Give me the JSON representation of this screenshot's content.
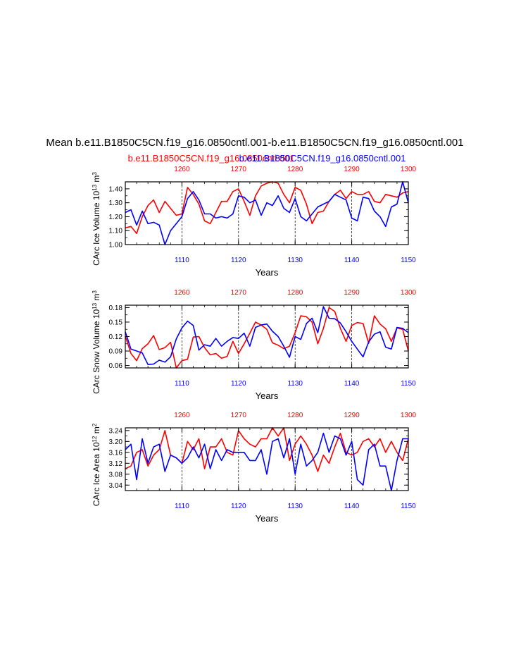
{
  "page": {
    "title": "Mean b.e11.B1850C5CN.f19_g16.0850cntl.001-b.e11.B1850C5CN.f19_g16.0850cntl.001",
    "legend_red": "b.e11.B1850C5CN.f19_g16.0850cntl.001",
    "legend_blue": "b.e11.B1850C5CN.f19_g16.0850cntl.001",
    "colors": {
      "red": "#ff0000",
      "blue": "#0000ff",
      "axis": "#000000",
      "grid": "#000000"
    }
  },
  "chart_data": [
    {
      "type": "line",
      "ylabel": "CArc Ice Volume 10^13 m^3",
      "ylabel_main": "CArc Ice Volume 10",
      "ylabel_exp1": "13",
      "ylabel_mid": " m",
      "ylabel_exp2": "3",
      "xlabel": "Years",
      "xlim": [
        1100,
        1150
      ],
      "ylim": [
        1.0,
        1.45
      ],
      "yticks": [
        1.0,
        1.1,
        1.2,
        1.3,
        1.4
      ],
      "ytick_labels": [
        "1.00",
        "1.10",
        "1.20",
        "1.30",
        "1.40"
      ],
      "xticks_bottom": [
        1110,
        1120,
        1130,
        1140,
        1150
      ],
      "xticks_bottom_labels": [
        "1110",
        "1120",
        "1130",
        "1140",
        "1150"
      ],
      "xlim_top": [
        1250,
        1300
      ],
      "xticks_top": [
        1260,
        1270,
        1280,
        1290,
        1300
      ],
      "xticks_top_labels": [
        "1260",
        "1270",
        "1280",
        "1290",
        "1300"
      ],
      "gridlines_x": [
        1110,
        1120,
        1130,
        1140
      ],
      "series": [
        {
          "name": "b.e11.B1850C5CN.f19_g16.0850cntl.001",
          "axis": "top",
          "color": "#ff0000",
          "x": [
            1250,
            1251,
            1252,
            1253,
            1254,
            1255,
            1256,
            1257,
            1258,
            1259,
            1260,
            1261,
            1262,
            1263,
            1264,
            1265,
            1266,
            1267,
            1268,
            1269,
            1270,
            1271,
            1272,
            1273,
            1274,
            1275,
            1276,
            1277,
            1278,
            1279,
            1280,
            1281,
            1282,
            1283,
            1284,
            1285,
            1286,
            1287,
            1288,
            1289,
            1290,
            1291,
            1292,
            1293,
            1294,
            1295,
            1296,
            1297,
            1298,
            1299,
            1300
          ],
          "values": [
            1.12,
            1.13,
            1.08,
            1.2,
            1.28,
            1.32,
            1.23,
            1.31,
            1.26,
            1.21,
            1.22,
            1.41,
            1.36,
            1.29,
            1.17,
            1.15,
            1.23,
            1.31,
            1.31,
            1.38,
            1.4,
            1.31,
            1.21,
            1.35,
            1.42,
            1.44,
            1.45,
            1.44,
            1.36,
            1.3,
            1.41,
            1.39,
            1.29,
            1.15,
            1.23,
            1.24,
            1.31,
            1.36,
            1.39,
            1.33,
            1.38,
            1.36,
            1.36,
            1.38,
            1.31,
            1.3,
            1.36,
            1.35,
            1.34,
            1.37,
            1.38
          ]
        },
        {
          "name": "b.e11.B1850C5CN.f19_g16.0850cntl.001",
          "axis": "bottom",
          "color": "#0000ff",
          "x": [
            1100,
            1101,
            1102,
            1103,
            1104,
            1105,
            1106,
            1107,
            1108,
            1109,
            1110,
            1111,
            1112,
            1113,
            1114,
            1115,
            1116,
            1117,
            1118,
            1119,
            1120,
            1121,
            1122,
            1123,
            1124,
            1125,
            1126,
            1127,
            1128,
            1129,
            1130,
            1131,
            1132,
            1133,
            1134,
            1135,
            1136,
            1137,
            1138,
            1139,
            1140,
            1141,
            1142,
            1143,
            1144,
            1145,
            1146,
            1147,
            1148,
            1149,
            1150
          ],
          "values": [
            1.23,
            1.25,
            1.14,
            1.24,
            1.15,
            1.16,
            1.14,
            1.0,
            1.1,
            1.15,
            1.2,
            1.33,
            1.38,
            1.32,
            1.22,
            1.22,
            1.19,
            1.2,
            1.19,
            1.22,
            1.35,
            1.34,
            1.3,
            1.32,
            1.21,
            1.3,
            1.28,
            1.35,
            1.26,
            1.23,
            1.33,
            1.2,
            1.17,
            1.22,
            1.27,
            1.29,
            1.31,
            1.36,
            1.34,
            1.32,
            1.19,
            1.17,
            1.34,
            1.33,
            1.24,
            1.2,
            1.13,
            1.27,
            1.29,
            1.45,
            1.3
          ]
        }
      ]
    },
    {
      "type": "line",
      "ylabel": "CArc Snow Volume 10^13 m^3",
      "ylabel_main": "CArc Snow Volume 10",
      "ylabel_exp1": "13",
      "ylabel_mid": " m",
      "ylabel_exp2": "3",
      "xlabel": "Years",
      "xlim": [
        1100,
        1150
      ],
      "ylim": [
        0.055,
        0.185
      ],
      "yticks": [
        0.06,
        0.09,
        0.12,
        0.15,
        0.18
      ],
      "ytick_labels": [
        "0.06",
        "0.09",
        "0.12",
        "0.15",
        "0.18"
      ],
      "xticks_bottom": [
        1110,
        1120,
        1130,
        1140,
        1150
      ],
      "xticks_bottom_labels": [
        "1110",
        "1120",
        "1130",
        "1140",
        "1150"
      ],
      "xlim_top": [
        1250,
        1300
      ],
      "xticks_top": [
        1260,
        1270,
        1280,
        1290,
        1300
      ],
      "xticks_top_labels": [
        "1260",
        "1270",
        "1280",
        "1290",
        "1300"
      ],
      "gridlines_x": [
        1110,
        1120,
        1130,
        1140
      ],
      "series": [
        {
          "name": "b.e11.B1850C5CN.f19_g16.0850cntl.001",
          "axis": "top",
          "color": "#ff0000",
          "x": [
            1250,
            1251,
            1252,
            1253,
            1254,
            1255,
            1256,
            1257,
            1258,
            1259,
            1260,
            1261,
            1262,
            1263,
            1264,
            1265,
            1266,
            1267,
            1268,
            1269,
            1270,
            1271,
            1272,
            1273,
            1274,
            1275,
            1276,
            1277,
            1278,
            1279,
            1280,
            1281,
            1282,
            1283,
            1284,
            1285,
            1286,
            1287,
            1288,
            1289,
            1290,
            1291,
            1292,
            1293,
            1294,
            1295,
            1296,
            1297,
            1298,
            1299,
            1300
          ],
          "values": [
            0.121,
            0.085,
            0.07,
            0.095,
            0.105,
            0.122,
            0.093,
            0.097,
            0.108,
            0.055,
            0.07,
            0.073,
            0.119,
            0.12,
            0.097,
            0.082,
            0.085,
            0.075,
            0.079,
            0.11,
            0.085,
            0.105,
            0.127,
            0.15,
            0.144,
            0.135,
            0.107,
            0.102,
            0.095,
            0.1,
            0.128,
            0.163,
            0.161,
            0.15,
            0.105,
            0.137,
            0.18,
            0.172,
            0.137,
            0.11,
            0.143,
            0.149,
            0.147,
            0.106,
            0.163,
            0.146,
            0.136,
            0.11,
            0.138,
            0.135,
            0.09
          ]
        },
        {
          "name": "b.e11.B1850C5CN.f19_g16.0850cntl.001",
          "axis": "bottom",
          "color": "#0000ff",
          "x": [
            1100,
            1101,
            1102,
            1103,
            1104,
            1105,
            1106,
            1107,
            1108,
            1109,
            1110,
            1111,
            1112,
            1113,
            1114,
            1115,
            1116,
            1117,
            1118,
            1119,
            1120,
            1121,
            1122,
            1123,
            1124,
            1125,
            1126,
            1127,
            1128,
            1129,
            1130,
            1131,
            1132,
            1133,
            1134,
            1135,
            1136,
            1137,
            1138,
            1139,
            1140,
            1141,
            1142,
            1143,
            1144,
            1145,
            1146,
            1147,
            1148,
            1149,
            1150
          ],
          "values": [
            0.13,
            0.094,
            0.09,
            0.086,
            0.062,
            0.063,
            0.071,
            0.067,
            0.078,
            0.115,
            0.138,
            0.152,
            0.143,
            0.092,
            0.103,
            0.1,
            0.116,
            0.1,
            0.11,
            0.118,
            0.116,
            0.127,
            0.1,
            0.139,
            0.144,
            0.146,
            0.131,
            0.12,
            0.1,
            0.077,
            0.12,
            0.114,
            0.147,
            0.158,
            0.128,
            0.182,
            0.158,
            0.157,
            0.148,
            0.13,
            0.11,
            0.094,
            0.078,
            0.109,
            0.125,
            0.13,
            0.098,
            0.094,
            0.139,
            0.137,
            0.128
          ]
        }
      ]
    },
    {
      "type": "line",
      "ylabel": "CArc Ice Area 10^12 m^2",
      "ylabel_main": "CArc Ice Area 10",
      "ylabel_exp1": "12",
      "ylabel_mid": " m",
      "ylabel_exp2": "2",
      "xlabel": "Years",
      "xlim": [
        1100,
        1150
      ],
      "ylim": [
        3.02,
        3.25
      ],
      "yticks": [
        3.04,
        3.08,
        3.12,
        3.16,
        3.2,
        3.24
      ],
      "ytick_labels": [
        "3.04",
        "3.08",
        "3.12",
        "3.16",
        "3.20",
        "3.24"
      ],
      "xticks_bottom": [
        1110,
        1120,
        1130,
        1140,
        1150
      ],
      "xticks_bottom_labels": [
        "1110",
        "1120",
        "1130",
        "1140",
        "1150"
      ],
      "xlim_top": [
        1250,
        1300
      ],
      "xticks_top": [
        1260,
        1270,
        1280,
        1290,
        1300
      ],
      "xticks_top_labels": [
        "1260",
        "1270",
        "1280",
        "1290",
        "1300"
      ],
      "gridlines_x": [
        1110,
        1120,
        1130,
        1140
      ],
      "series": [
        {
          "name": "b.e11.B1850C5CN.f19_g16.0850cntl.001",
          "axis": "top",
          "color": "#ff0000",
          "x": [
            1250,
            1251,
            1252,
            1253,
            1254,
            1255,
            1256,
            1257,
            1258,
            1259,
            1260,
            1261,
            1262,
            1263,
            1264,
            1265,
            1266,
            1267,
            1268,
            1269,
            1270,
            1271,
            1272,
            1273,
            1274,
            1275,
            1276,
            1277,
            1278,
            1279,
            1280,
            1281,
            1282,
            1283,
            1284,
            1285,
            1286,
            1287,
            1288,
            1289,
            1290,
            1291,
            1292,
            1293,
            1294,
            1295,
            1296,
            1297,
            1298,
            1299,
            1300
          ],
          "values": [
            3.1,
            3.11,
            3.16,
            3.17,
            3.11,
            3.15,
            3.17,
            3.24,
            3.15,
            3.14,
            3.12,
            3.2,
            3.17,
            3.21,
            3.1,
            3.18,
            3.18,
            3.21,
            3.16,
            3.15,
            3.24,
            3.21,
            3.19,
            3.18,
            3.21,
            3.21,
            3.25,
            3.22,
            3.25,
            3.13,
            3.19,
            3.22,
            3.19,
            3.15,
            3.09,
            3.15,
            3.12,
            3.18,
            3.23,
            3.16,
            3.15,
            3.16,
            3.2,
            3.21,
            3.18,
            3.21,
            3.16,
            3.2,
            3.16,
            3.13,
            3.21
          ]
        },
        {
          "name": "b.e11.B1850C5CN.f19_g16.0850cntl.001",
          "axis": "bottom",
          "color": "#0000ff",
          "x": [
            1100,
            1101,
            1102,
            1103,
            1104,
            1105,
            1106,
            1107,
            1108,
            1109,
            1110,
            1111,
            1112,
            1113,
            1114,
            1115,
            1116,
            1117,
            1118,
            1119,
            1120,
            1121,
            1122,
            1123,
            1124,
            1125,
            1126,
            1127,
            1128,
            1129,
            1130,
            1131,
            1132,
            1133,
            1134,
            1135,
            1136,
            1137,
            1138,
            1139,
            1140,
            1141,
            1142,
            1143,
            1144,
            1145,
            1146,
            1147,
            1148,
            1149,
            1150
          ],
          "values": [
            3.17,
            3.19,
            3.06,
            3.21,
            3.12,
            3.18,
            3.19,
            3.09,
            3.15,
            3.14,
            3.12,
            3.14,
            3.18,
            3.14,
            3.19,
            3.1,
            3.17,
            3.13,
            3.17,
            3.16,
            3.16,
            3.16,
            3.13,
            3.13,
            3.17,
            3.08,
            3.2,
            3.21,
            3.14,
            3.21,
            3.08,
            3.19,
            3.11,
            3.13,
            3.16,
            3.23,
            3.16,
            3.22,
            3.21,
            3.15,
            3.2,
            3.06,
            3.04,
            3.17,
            3.19,
            3.11,
            3.11,
            3.02,
            3.13,
            3.21,
            3.21
          ]
        }
      ]
    }
  ]
}
